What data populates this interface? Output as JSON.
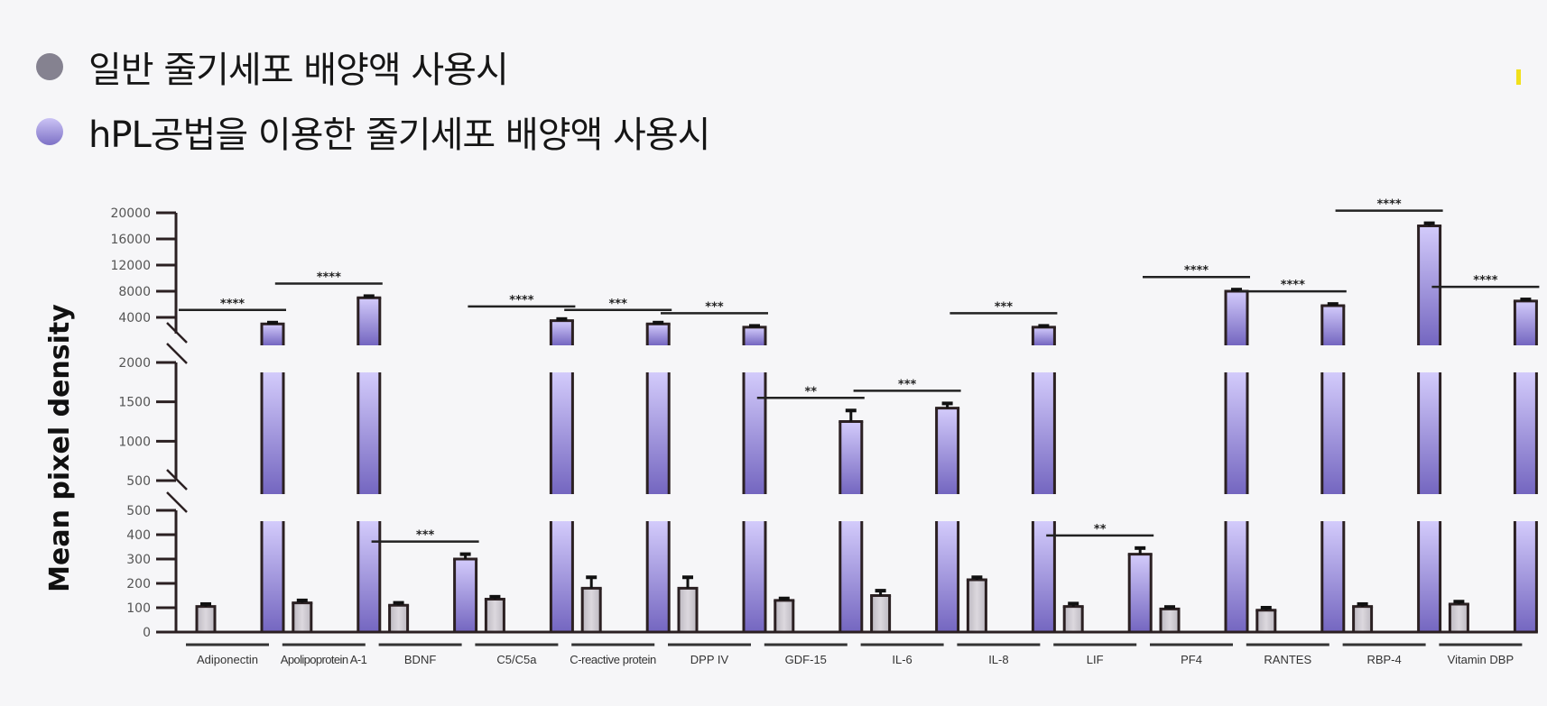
{
  "legend": {
    "items": [
      {
        "label": "일반 줄기세포 배양액 사용시",
        "color": "#858290"
      },
      {
        "label": "hPL공법을 이용한 줄기세포 배양액 사용시",
        "color": "#9d92dd"
      }
    ]
  },
  "chart_data": {
    "type": "bar",
    "title": "",
    "xlabel": "",
    "ylabel": "Mean pixel density",
    "axis_breaks": true,
    "y_segments": [
      {
        "range": [
          0,
          500
        ],
        "ticks": [
          0,
          100,
          200,
          300,
          400,
          500
        ]
      },
      {
        "range": [
          500,
          2000
        ],
        "ticks": [
          500,
          1000,
          1500,
          2000
        ]
      },
      {
        "range": [
          4000,
          20000
        ],
        "ticks": [
          4000,
          8000,
          12000,
          16000,
          20000
        ]
      }
    ],
    "grid": false,
    "legend_position": "top-left",
    "categories": [
      "Adiponectin",
      "Apolipoprotein A-1",
      "BDNF",
      "C5/C5a",
      "C-reactive protein",
      "DPP IV",
      "GDF-15",
      "IL-6",
      "IL-8",
      "LIF",
      "PF4",
      "RANTES",
      "RBP-4",
      "Vitamin DBP"
    ],
    "series": [
      {
        "name": "일반 줄기세포 배양액 사용시",
        "color": "#c8c3ca",
        "values": [
          105,
          120,
          110,
          135,
          180,
          180,
          130,
          150,
          215,
          105,
          95,
          90,
          105,
          115
        ],
        "errors": [
          10,
          10,
          10,
          10,
          45,
          45,
          8,
          20,
          10,
          12,
          8,
          10,
          10,
          10
        ]
      },
      {
        "name": "hPL공법을 이용한 줄기세포 배양액 사용시",
        "color": "#9d92dd",
        "values": [
          3000,
          7000,
          300,
          3500,
          3000,
          2500,
          1250,
          1420,
          2500,
          320,
          8000,
          5800,
          18000,
          6500
        ],
        "errors": [
          200,
          250,
          20,
          250,
          200,
          200,
          140,
          60,
          200,
          25,
          250,
          250,
          400,
          250
        ]
      }
    ],
    "significance": [
      "****",
      "****",
      "***",
      "****",
      "***",
      "***",
      "**",
      "***",
      "***",
      "**",
      "****",
      "****",
      "****",
      "****"
    ]
  }
}
